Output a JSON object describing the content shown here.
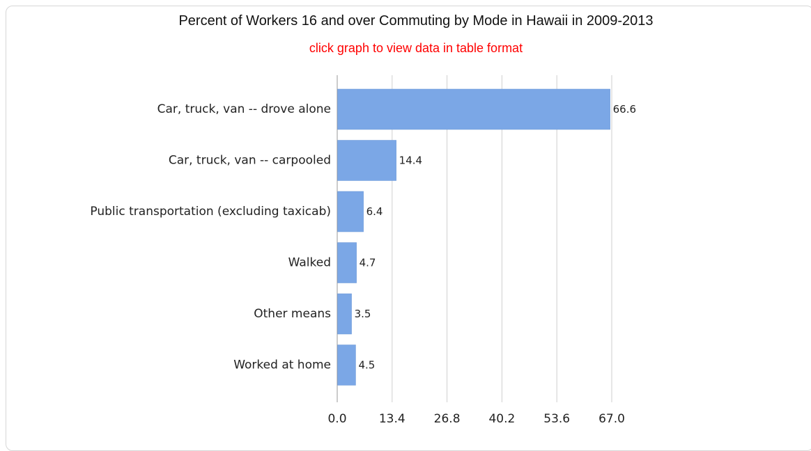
{
  "chart_data": {
    "type": "bar",
    "orientation": "horizontal",
    "title": "Percent of Workers 16 and over Commuting by Mode in Hawaii in 2009-2013",
    "subtitle": "click graph to view data in table format",
    "categories": [
      "Car, truck, van -- drove alone",
      "Car, truck, van -- carpooled",
      "Public transportation (excluding taxicab)",
      "Walked",
      "Other means",
      "Worked at home"
    ],
    "values": [
      66.6,
      14.4,
      6.4,
      4.7,
      3.5,
      4.5
    ],
    "value_labels": [
      "66.6",
      "14.4",
      "6.4",
      "4.7",
      "3.5",
      "4.5"
    ],
    "xlim": [
      0.0,
      67.0
    ],
    "xticks": [
      "0.0",
      "13.4",
      "26.8",
      "40.2",
      "53.6",
      "67.0"
    ],
    "xtick_values": [
      0.0,
      13.4,
      26.8,
      40.2,
      53.6,
      67.0
    ],
    "xlabel": "",
    "ylabel": "",
    "grid": "vertical",
    "legend": "none",
    "colors": {
      "bar": "#7ba7e6",
      "bar_edge": "#6c98d8",
      "grid": "#cfcfcf",
      "axis": "#9a9a9a",
      "title": "#111111",
      "link": "#ff0000"
    }
  }
}
